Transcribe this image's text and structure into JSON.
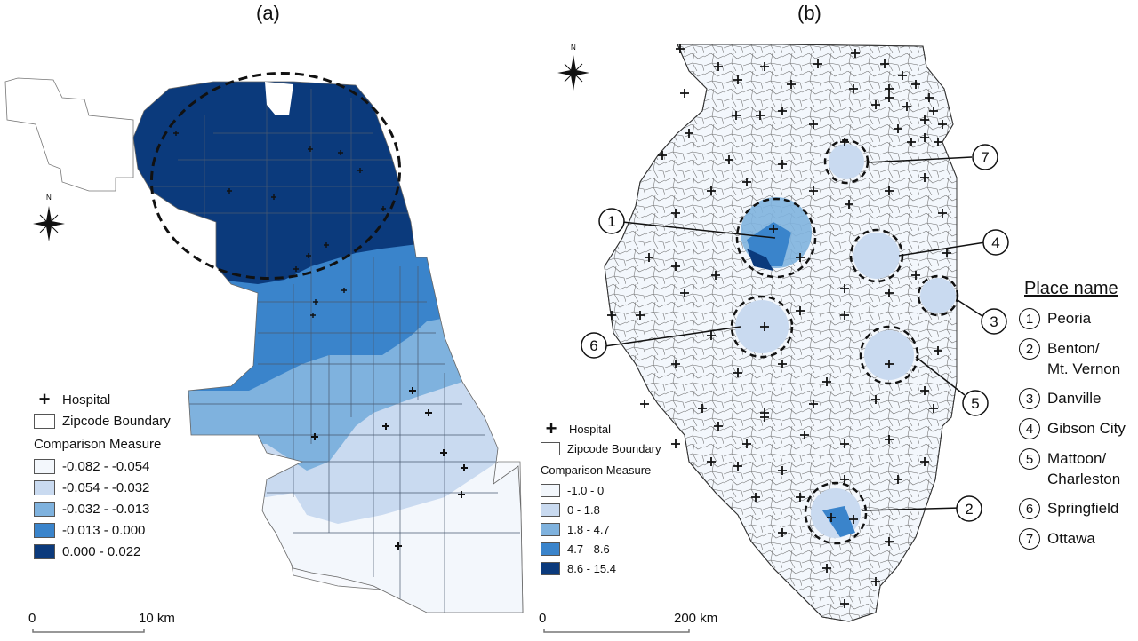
{
  "panel_a": {
    "label": "(a)",
    "north": "N",
    "legend": {
      "hospital_label": "Hospital",
      "boundary_label": "Zipcode Boundary",
      "measure_title": "Comparison Measure",
      "classes": [
        {
          "range": "-0.082 - -0.054",
          "color": "#f3f7fc"
        },
        {
          "range": "-0.054 - -0.032",
          "color": "#c9daf0"
        },
        {
          "range": "-0.032 - -0.013",
          "color": "#7fb2de"
        },
        {
          "range": "-0.013 - 0.000",
          "color": "#3a84cb"
        },
        {
          "range": "0.000 - 0.022",
          "color": "#0b3a7c"
        }
      ]
    },
    "scale": {
      "start": "0",
      "end": "10 km"
    }
  },
  "panel_b": {
    "label": "(b)",
    "north": "N",
    "legend": {
      "hospital_label": "Hospital",
      "boundary_label": "Zipcode Boundary",
      "measure_title": "Comparison Measure",
      "classes": [
        {
          "range": "-1.0 - 0",
          "color": "#f3f7fc"
        },
        {
          "range": "0 - 1.8",
          "color": "#c9daf0"
        },
        {
          "range": "1.8 - 4.7",
          "color": "#7fb2de"
        },
        {
          "range": "4.7 - 8.6",
          "color": "#3a84cb"
        },
        {
          "range": "8.6 - 15.4",
          "color": "#0b3a7c"
        }
      ]
    },
    "scale": {
      "start": "0",
      "end": "200 km"
    },
    "callouts": [
      "1",
      "2",
      "3",
      "4",
      "5",
      "6",
      "7"
    ]
  },
  "place_legend": {
    "title": "Place name",
    "items": [
      {
        "num": "1",
        "name": "Peoria"
      },
      {
        "num": "2",
        "name": "Benton/\nMt. Vernon"
      },
      {
        "num": "3",
        "name": "Danville"
      },
      {
        "num": "4",
        "name": "Gibson City"
      },
      {
        "num": "5",
        "name": "Mattoon/\nCharleston"
      },
      {
        "num": "6",
        "name": "Springfield"
      },
      {
        "num": "7",
        "name": "Ottawa"
      }
    ]
  }
}
